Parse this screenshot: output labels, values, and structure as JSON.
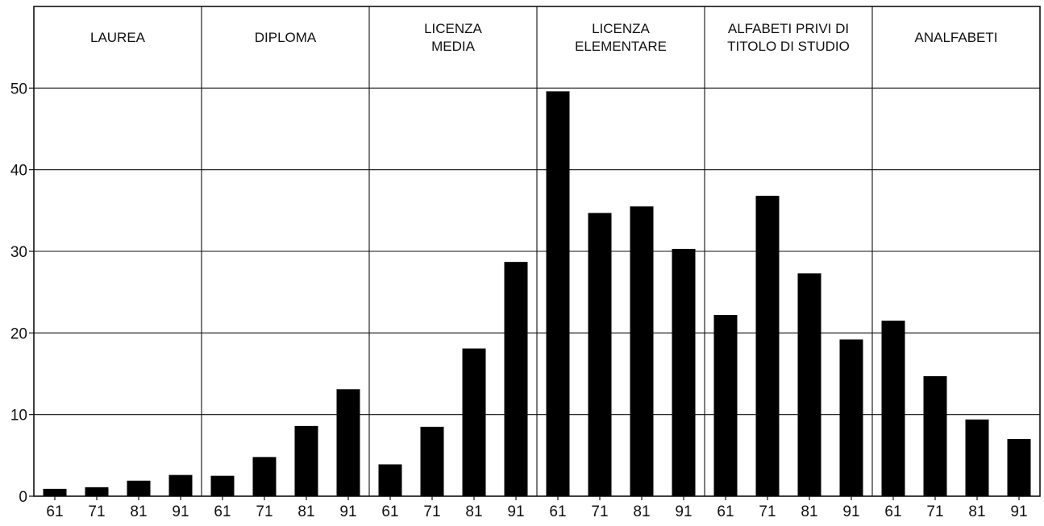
{
  "chart_data": {
    "type": "bar",
    "title": "",
    "xlabel": "",
    "ylabel": "",
    "ylim": [
      0,
      60
    ],
    "yticks": [
      "0",
      "10",
      "20",
      "30",
      "40",
      "50"
    ],
    "grid": true,
    "bar_color": "#000000",
    "groups": [
      {
        "label_lines": [
          "LAUREA"
        ],
        "years": [
          "61",
          "71",
          "81",
          "91"
        ],
        "values": [
          0.9,
          1.1,
          1.9,
          2.6
        ]
      },
      {
        "label_lines": [
          "DIPLOMA"
        ],
        "years": [
          "61",
          "71",
          "81",
          "91"
        ],
        "values": [
          2.5,
          4.8,
          8.6,
          13.1
        ]
      },
      {
        "label_lines": [
          "LICENZA",
          "MEDIA"
        ],
        "years": [
          "61",
          "71",
          "81",
          "91"
        ],
        "values": [
          3.9,
          8.5,
          18.1,
          28.7
        ]
      },
      {
        "label_lines": [
          "LICENZA",
          "ELEMENTARE"
        ],
        "years": [
          "61",
          "71",
          "81",
          "91"
        ],
        "values": [
          49.6,
          34.7,
          35.5,
          30.3
        ]
      },
      {
        "label_lines": [
          "ALFABETI PRIVI DI",
          "TITOLO DI STUDIO"
        ],
        "years": [
          "61",
          "71",
          "81",
          "91"
        ],
        "values": [
          22.2,
          36.8,
          27.3,
          19.2
        ]
      },
      {
        "label_lines": [
          "ANALFABETI"
        ],
        "years": [
          "61",
          "71",
          "81",
          "91"
        ],
        "values": [
          21.5,
          14.7,
          9.4,
          7.0
        ]
      }
    ]
  }
}
